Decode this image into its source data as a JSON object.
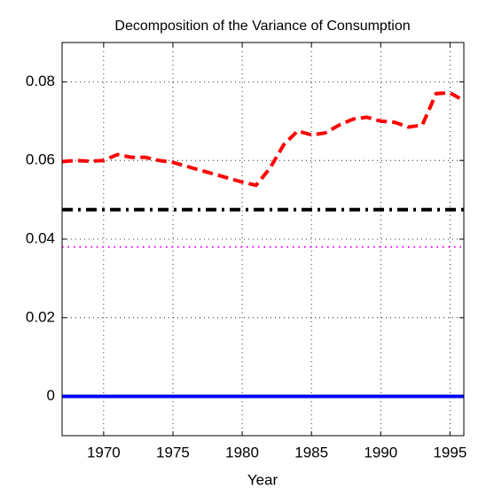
{
  "chart_data": {
    "type": "line",
    "title": "Decomposition of the Variance of Consumption",
    "x_label": "Year",
    "x": [
      1967,
      1968,
      1969,
      1970,
      1971,
      1972,
      1973,
      1974,
      1975,
      1976,
      1977,
      1978,
      1979,
      1980,
      1981,
      1982,
      1983,
      1984,
      1985,
      1986,
      1987,
      1988,
      1989,
      1990,
      1991,
      1992,
      1993,
      1994,
      1995,
      1996
    ],
    "series": [
      {
        "color": "#0000ff",
        "style": "solid",
        "values": [
          0,
          0,
          0,
          0,
          0,
          0,
          0,
          0,
          0,
          0,
          0,
          0,
          0,
          0,
          0,
          0,
          0,
          0,
          0,
          0,
          0,
          0,
          0,
          0,
          0,
          0,
          0,
          0,
          0,
          0
        ]
      },
      {
        "color": "#ff00ff",
        "style": "dotted",
        "values": [
          0.038,
          0.038,
          0.038,
          0.038,
          0.038,
          0.038,
          0.038,
          0.038,
          0.038,
          0.038,
          0.038,
          0.038,
          0.038,
          0.038,
          0.038,
          0.038,
          0.038,
          0.038,
          0.038,
          0.038,
          0.038,
          0.038,
          0.038,
          0.038,
          0.038,
          0.038,
          0.038,
          0.038,
          0.038,
          0.038
        ]
      },
      {
        "color": "#000000",
        "style": "dashdot",
        "values": [
          0.0475,
          0.0475,
          0.0475,
          0.0475,
          0.0475,
          0.0475,
          0.0475,
          0.0475,
          0.0475,
          0.0475,
          0.0475,
          0.0475,
          0.0475,
          0.0475,
          0.0475,
          0.0475,
          0.0475,
          0.0475,
          0.0475,
          0.0475,
          0.0475,
          0.0475,
          0.0475,
          0.0475,
          0.0475,
          0.0475,
          0.0475,
          0.0475,
          0.0475,
          0.0475
        ]
      },
      {
        "color": "#ff0000",
        "style": "dashed",
        "values": [
          0.0597,
          0.06,
          0.0598,
          0.06,
          0.0615,
          0.0608,
          0.0608,
          0.06,
          0.0595,
          0.0585,
          0.0575,
          0.0565,
          0.0555,
          0.0545,
          0.0537,
          0.058,
          0.064,
          0.0675,
          0.0665,
          0.067,
          0.069,
          0.0705,
          0.071,
          0.07,
          0.0697,
          0.0685,
          0.069,
          0.077,
          0.0772,
          0.0752
        ]
      }
    ],
    "xlim": [
      1967,
      1996
    ],
    "xticks": [
      1970,
      1975,
      1980,
      1985,
      1990,
      1995
    ],
    "ylim": [
      -0.01,
      0.09
    ],
    "yticks": [
      0,
      0.02,
      0.04,
      0.06,
      0.08
    ],
    "grid": true
  }
}
